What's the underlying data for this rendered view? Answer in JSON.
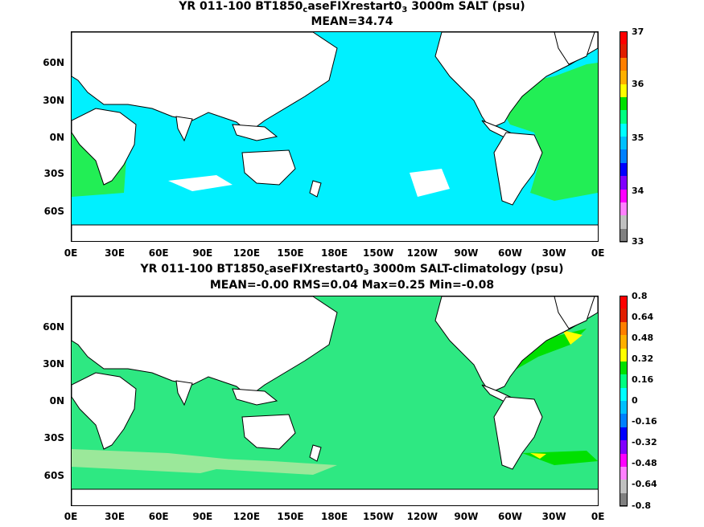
{
  "panels": [
    {
      "title_line1_a": "YR 011-100 BT1850",
      "title_line1_sub": "c",
      "title_line1_b": "aseFIXrestart0",
      "title_line1_sub2": "3",
      "title_line1_c": " 3000m SALT (psu)",
      "title_line2": "MEAN=34.74",
      "ocean_color": "#00f0ff",
      "colorbar_labels": [
        "37",
        "36",
        "35",
        "34",
        "33"
      ]
    },
    {
      "title_line1_a": "YR 011-100 BT1850",
      "title_line1_sub": "c",
      "title_line1_b": "aseFIXrestart0",
      "title_line1_sub2": "3",
      "title_line1_c": " 3000m SALT-climatology (psu)",
      "title_line2": "MEAN=-0.00   RMS=0.04   Max=0.25   Min=-0.08",
      "ocean_color": "#2ee882",
      "colorbar_labels": [
        "0.8",
        "0.64",
        "0.48",
        "0.32",
        "0.16",
        "0",
        "-0.16",
        "-0.32",
        "-0.48",
        "-0.64",
        "-0.8"
      ]
    }
  ],
  "lat_labels": [
    "60N",
    "30N",
    "0N",
    "30S",
    "60S"
  ],
  "lon_labels": [
    "0E",
    "30E",
    "60E",
    "90E",
    "120E",
    "150E",
    "180E",
    "150W",
    "120W",
    "90W",
    "60W",
    "30W",
    "0E"
  ],
  "colorbar_colors": [
    "#ff0000",
    "#e01e00",
    "#ff7f00",
    "#ffb000",
    "#ffff00",
    "#00e000",
    "#00ff80",
    "#00ffff",
    "#00c0ff",
    "#0080ff",
    "#0000ff",
    "#8000ff",
    "#ff00ff",
    "#ff80ff",
    "#c0c0c0",
    "#808080"
  ]
}
